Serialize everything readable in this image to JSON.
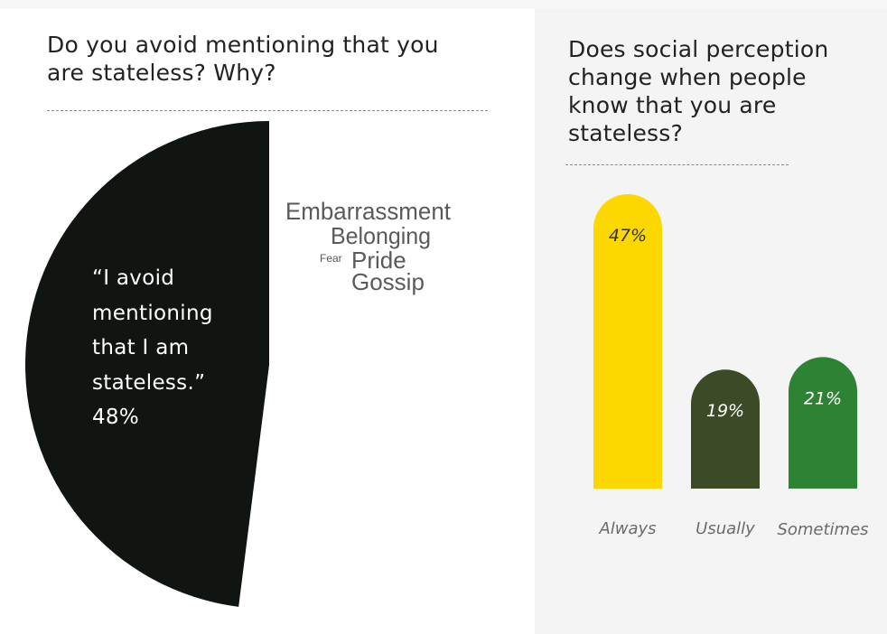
{
  "left_panel": {
    "question": "Do you avoid mentioning that you are stateless? Why?",
    "pie_label": "“I avoid mentioning that I am stateless.” 48%",
    "word_cloud": [
      "Embarrassment",
      "Belonging",
      "Fear",
      "Pride",
      "Gossip"
    ]
  },
  "right_panel": {
    "question": "Does social perception change when people know that you are stateless?"
  },
  "chart_data": [
    {
      "type": "pie",
      "title": "",
      "slices": [
        {
          "label": "“I avoid mentioning that I am stateless.”",
          "value": 48,
          "display": "48%",
          "color": "#111511"
        }
      ]
    },
    {
      "type": "bar",
      "title": "",
      "categories": [
        "Always",
        "Usually",
        "Sometimes"
      ],
      "values": [
        47,
        19,
        21
      ],
      "value_labels": [
        "47%",
        "19%",
        "21%"
      ],
      "colors": [
        "#fdd800",
        "#3c4a27",
        "#2e8233"
      ],
      "ylim": [
        0,
        47
      ],
      "grid": false,
      "legend": "none"
    }
  ]
}
